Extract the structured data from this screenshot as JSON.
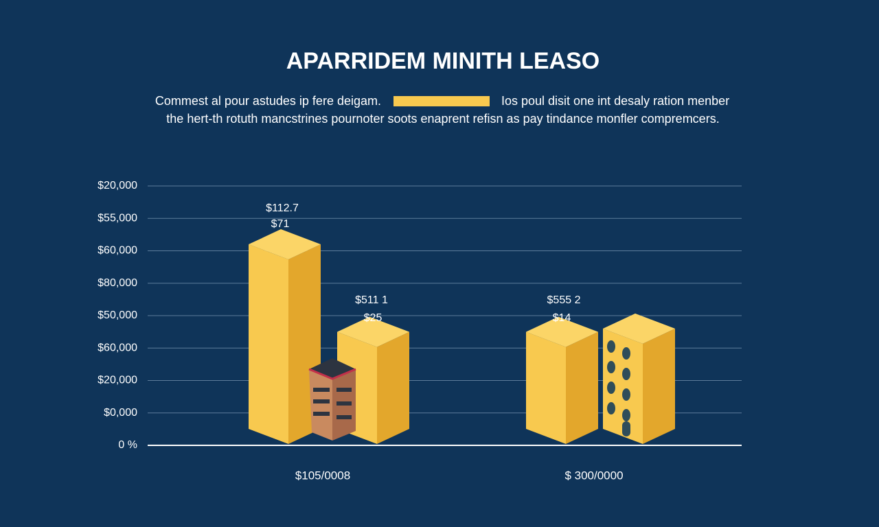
{
  "chart_data": {
    "type": "bar3d",
    "title": "APARRIDEM MINITH LEASO",
    "subtitle": [
      "Commest al pour astudes ip fere deigam.",
      "Ios poul disit one int desaly ration menber",
      "the hert-th rotuth mancstrines pournoter soots enaprent refisn as pay tindance monfler compremcers."
    ],
    "categories": [
      "$105/0008",
      "$ 300/0000"
    ],
    "series": [
      {
        "color": "#f8c94f",
        "values": [
          6.2,
          3.5
        ]
      },
      {
        "color": "#f8c94f",
        "values": [
          3.5,
          3.6
        ]
      }
    ],
    "ylim": [
      0,
      8
    ],
    "yticks": [
      {
        "value": 0,
        "label": "0 %"
      },
      {
        "value": 1,
        "label": "$0,000"
      },
      {
        "value": 2,
        "label": "$20,000"
      },
      {
        "value": 3,
        "label": "$60,000"
      },
      {
        "value": 4,
        "label": "$50,000"
      },
      {
        "value": 5,
        "label": "$80,000"
      },
      {
        "value": 6,
        "label": "$60,000"
      },
      {
        "value": 7,
        "label": "$55,000"
      },
      {
        "value": 8,
        "label": "$20,000"
      }
    ],
    "annotations": [
      "$112.7",
      "$71",
      "$511 1",
      "$25",
      "$555 2",
      "$14"
    ],
    "grid": true
  }
}
